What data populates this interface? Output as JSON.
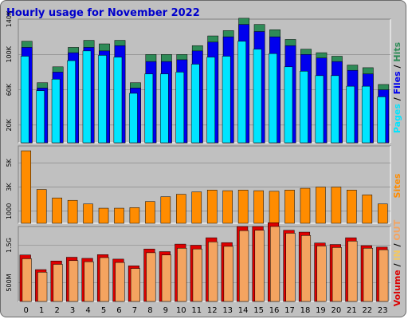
{
  "title": "Hourly usage for November 2022",
  "colors": {
    "title": "#0000cc",
    "frame": "#c0c0c0",
    "panel": "#c0c0c0",
    "hits": "#2e8b57",
    "files": "#0000ee",
    "pages": "#00e5ff",
    "sites": "#ff8c00",
    "kbytes_in": "#f4a460",
    "kbytes_out": "#f4c860",
    "volume": "#dd0000"
  },
  "chart_data": [
    {
      "type": "bar",
      "panel": "requests",
      "categories": [
        "0",
        "1",
        "2",
        "3",
        "4",
        "5",
        "6",
        "7",
        "8",
        "9",
        "10",
        "11",
        "12",
        "13",
        "14",
        "15",
        "16",
        "17",
        "18",
        "19",
        "20",
        "21",
        "22",
        "23"
      ],
      "y_ticks": [
        "20K",
        "60K",
        "100K",
        "140K"
      ],
      "ylim": [
        0,
        140000
      ],
      "legend": [
        "Pages",
        "Files",
        "Hits"
      ],
      "series": [
        {
          "name": "Hits",
          "values": [
            115000,
            68000,
            86000,
            108000,
            116000,
            112000,
            116000,
            68000,
            100000,
            100000,
            100000,
            110000,
            121000,
            127000,
            141000,
            134000,
            128000,
            117000,
            106000,
            102000,
            98000,
            88000,
            85000,
            66000
          ]
        },
        {
          "name": "Files",
          "values": [
            108000,
            62000,
            80000,
            102000,
            108000,
            104000,
            110000,
            62000,
            92000,
            92000,
            94000,
            104000,
            114000,
            120000,
            134000,
            126000,
            120000,
            110000,
            100000,
            96000,
            92000,
            82000,
            78000,
            60000
          ]
        },
        {
          "name": "Pages",
          "values": [
            98000,
            59000,
            72000,
            93000,
            104000,
            99000,
            97000,
            56000,
            78000,
            78000,
            80000,
            89000,
            97000,
            98000,
            115000,
            106000,
            101000,
            86000,
            81000,
            76000,
            76000,
            64000,
            64000,
            52000
          ]
        }
      ]
    },
    {
      "type": "bar",
      "panel": "sites",
      "categories": [
        "0",
        "1",
        "2",
        "3",
        "4",
        "5",
        "6",
        "7",
        "8",
        "9",
        "10",
        "11",
        "12",
        "13",
        "14",
        "15",
        "16",
        "17",
        "18",
        "19",
        "20",
        "21",
        "22",
        "23"
      ],
      "y_ticks": [
        "1000",
        "3K",
        "5K"
      ],
      "ylim": [
        0,
        6400
      ],
      "legend": [
        "Sites"
      ],
      "series": [
        {
          "name": "Sites",
          "values": [
            6000,
            2800,
            2100,
            1900,
            1600,
            1250,
            1250,
            1300,
            1800,
            2200,
            2400,
            2600,
            2750,
            2700,
            2750,
            2700,
            2650,
            2750,
            2900,
            3000,
            3000,
            2750,
            2350,
            1600
          ]
        }
      ]
    },
    {
      "type": "bar",
      "panel": "volume",
      "categories": [
        "0",
        "1",
        "2",
        "3",
        "4",
        "5",
        "6",
        "7",
        "8",
        "9",
        "10",
        "11",
        "12",
        "13",
        "14",
        "15",
        "16",
        "17",
        "18",
        "19",
        "20",
        "21",
        "22",
        "23"
      ],
      "y_ticks": [
        "500M",
        "1.5G"
      ],
      "ylim": [
        0,
        2000
      ],
      "legend": [
        "Volume",
        "IN",
        "OUT"
      ],
      "series": [
        {
          "name": "Volume",
          "values": [
            1240,
            850,
            1080,
            1180,
            1150,
            1250,
            1130,
            950,
            1400,
            1330,
            1530,
            1500,
            1700,
            1570,
            2000,
            2000,
            2100,
            1900,
            1850,
            1560,
            1520,
            1700,
            1490,
            1450
          ]
        },
        {
          "name": "IN",
          "values": [
            1140,
            780,
            990,
            1090,
            1060,
            1170,
            1040,
            880,
            1300,
            1240,
            1420,
            1400,
            1590,
            1470,
            1890,
            1900,
            2000,
            1820,
            1760,
            1480,
            1440,
            1610,
            1420,
            1380
          ]
        }
      ]
    }
  ]
}
